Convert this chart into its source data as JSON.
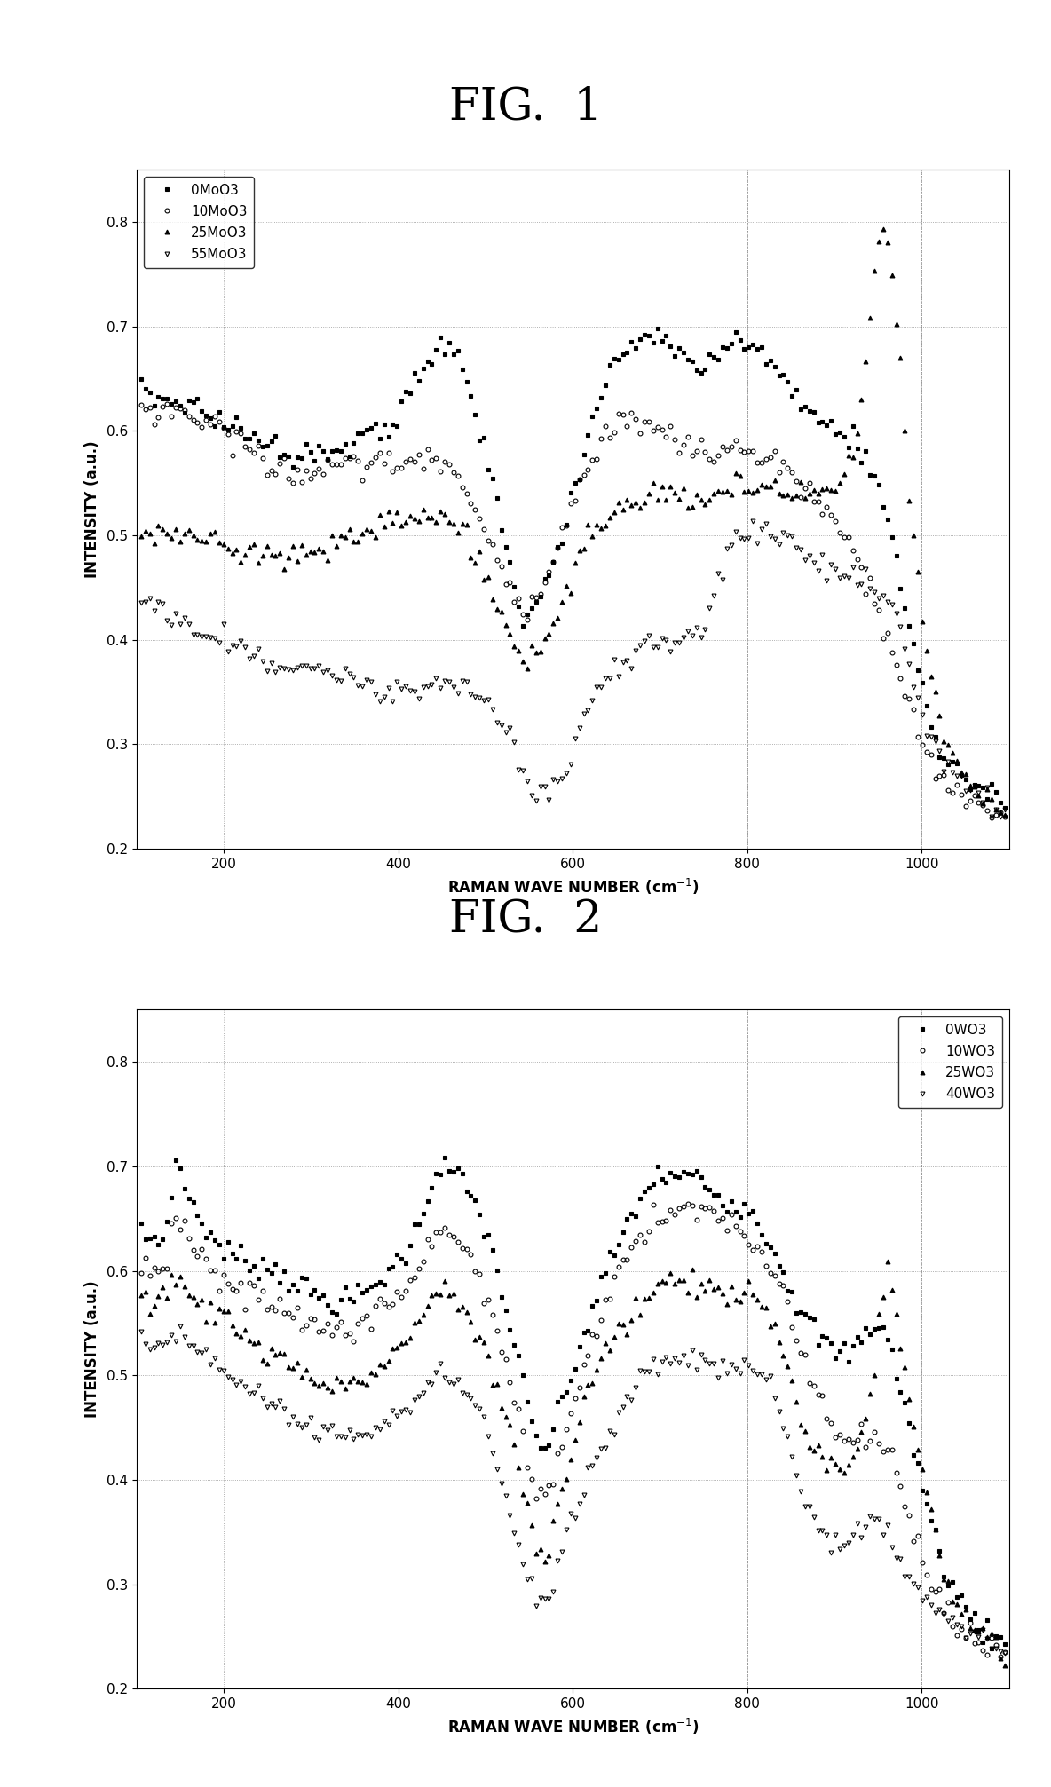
{
  "fig1_title": "FIG.  1",
  "fig2_title": "FIG.  2",
  "ylabel": "INTENSITY (a.u.)",
  "ylim": [
    0.2,
    0.85
  ],
  "xlim": [
    100,
    1100
  ],
  "yticks": [
    0.2,
    0.3,
    0.4,
    0.5,
    0.6,
    0.7,
    0.8
  ],
  "xticks": [
    200,
    400,
    600,
    800,
    1000
  ],
  "fig1_legend": [
    "0MoO3",
    "10MoO3",
    "25MoO3",
    "55MoO3"
  ],
  "fig2_legend": [
    "0WO3",
    "10WO3",
    "25WO3",
    "40WO3"
  ],
  "background_color": "#ffffff"
}
